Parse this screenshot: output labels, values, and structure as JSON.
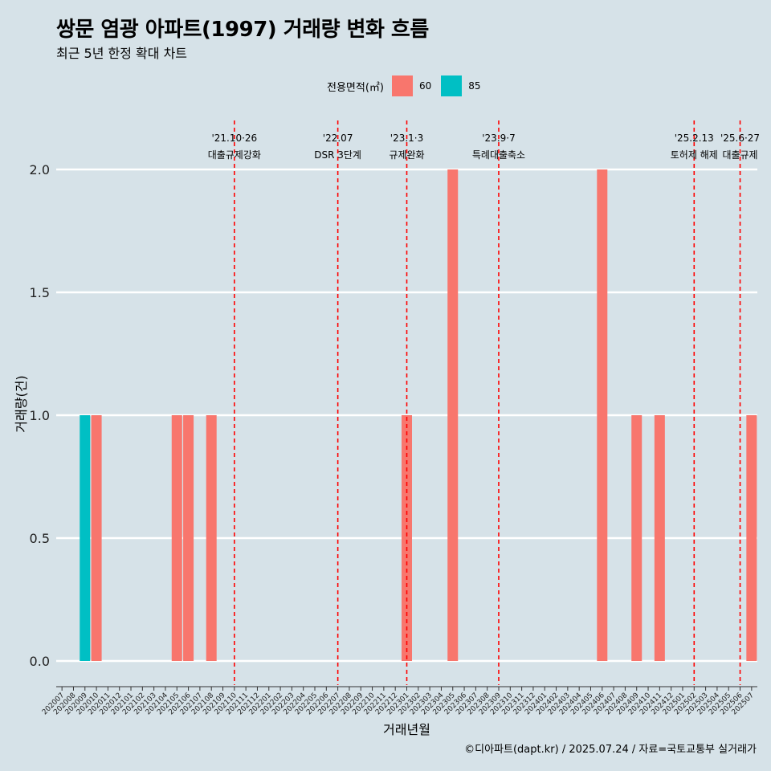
{
  "title": "쌍문 염광 아파트(1997) 거래량 변화 흐름",
  "subtitle": "최근 5년 한정 확대 차트",
  "caption": "©디아파트(dapt.kr) / 2025.07.24 / 자료=국토교통부 실거래가",
  "legend": {
    "title": "전용면적(㎡)",
    "items": [
      {
        "label": "60",
        "color": "#f8766d"
      },
      {
        "label": "85",
        "color": "#00bfc4"
      }
    ]
  },
  "chart_data": {
    "type": "bar",
    "xlabel": "거래년월",
    "ylabel": "거래량(건)",
    "ylim": [
      0,
      2
    ],
    "yticks": [
      "0.0",
      "0.5",
      "1.0",
      "1.5",
      "2.0"
    ],
    "categories": [
      "202007",
      "202008",
      "202009",
      "202010",
      "202011",
      "202012",
      "202101",
      "202102",
      "202103",
      "202104",
      "202105",
      "202106",
      "202107",
      "202108",
      "202109",
      "202110",
      "202111",
      "202112",
      "202201",
      "202202",
      "202203",
      "202204",
      "202205",
      "202206",
      "202207",
      "202208",
      "202209",
      "202210",
      "202211",
      "202212",
      "202301",
      "202302",
      "202303",
      "202304",
      "202305",
      "202306",
      "202307",
      "202308",
      "202309",
      "202310",
      "202311",
      "202312",
      "202401",
      "202402",
      "202403",
      "202404",
      "202405",
      "202406",
      "202407",
      "202408",
      "202409",
      "202410",
      "202411",
      "202412",
      "202501",
      "202502",
      "202503",
      "202504",
      "202505",
      "202506",
      "202507"
    ],
    "series": [
      {
        "name": "60",
        "color": "#f8766d",
        "points": [
          {
            "x": "202010",
            "y": 1
          },
          {
            "x": "202105",
            "y": 1
          },
          {
            "x": "202106",
            "y": 1
          },
          {
            "x": "202108",
            "y": 1
          },
          {
            "x": "202301",
            "y": 1
          },
          {
            "x": "202305",
            "y": 2
          },
          {
            "x": "202406",
            "y": 2
          },
          {
            "x": "202409",
            "y": 1
          },
          {
            "x": "202411",
            "y": 1
          },
          {
            "x": "202507",
            "y": 1
          }
        ]
      },
      {
        "name": "85",
        "color": "#00bfc4",
        "points": [
          {
            "x": "202009",
            "y": 1
          }
        ]
      }
    ],
    "events": [
      {
        "x": "202110",
        "date": "'21.10·26",
        "label": "대출규제강화"
      },
      {
        "x": "202207",
        "date": "'22.07",
        "label": "DSR 3단계"
      },
      {
        "x": "202301",
        "date": "'23.1·3",
        "label": "규제완화"
      },
      {
        "x": "202309",
        "date": "'23.9·7",
        "label": "특례대출축소"
      },
      {
        "x": "202502",
        "date": "'25.2.13",
        "label": "토허제 해제"
      },
      {
        "x": "202506",
        "date": "'25.6·27",
        "label": "대출규제"
      }
    ]
  }
}
